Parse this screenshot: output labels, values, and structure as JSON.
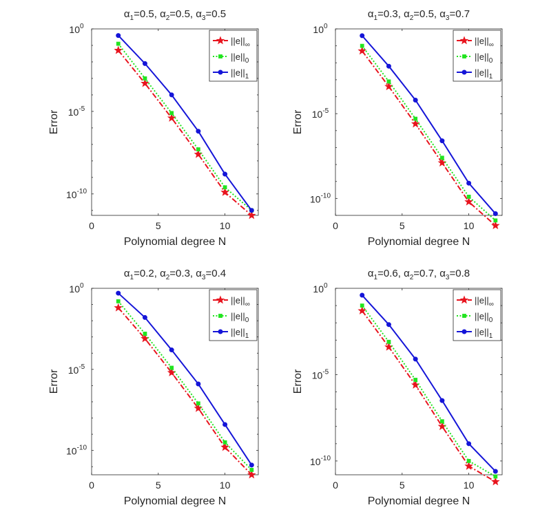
{
  "chart_data": [
    {
      "type": "line",
      "title": "α1=0.5, α2=0.5, α3=0.5",
      "title_parts": [
        {
          "sym": "α",
          "sub": "1",
          "val": "=0.5, "
        },
        {
          "sym": "α",
          "sub": "2",
          "val": "=0.5, "
        },
        {
          "sym": "α",
          "sub": "3",
          "val": "=0.5"
        }
      ],
      "xlabel": "Polynomial degree N",
      "ylabel": "Error",
      "xlim": [
        0,
        12.5
      ],
      "ylim_exp": [
        -11.3,
        0
      ],
      "y_scale": "log",
      "x": [
        2,
        4,
        6,
        8,
        10,
        12
      ],
      "series": [
        {
          "name": "||e||∞",
          "legend_base": "||e||",
          "legend_sub": "∞",
          "color": "#e8141e",
          "marker": "star",
          "style": "dash-dot",
          "log10_values": [
            -1.3,
            -3.3,
            -5.4,
            -7.6,
            -9.9,
            -11.3
          ]
        },
        {
          "name": "||e||0",
          "legend_base": "||e||",
          "legend_sub": "0",
          "color": "#21e41f",
          "marker": "square",
          "style": "dotted",
          "log10_values": [
            -0.9,
            -3.0,
            -5.1,
            -7.3,
            -9.6,
            -11.0
          ]
        },
        {
          "name": "||e||1",
          "legend_base": "||e||",
          "legend_sub": "1",
          "color": "#1515d8",
          "marker": "circle",
          "style": "solid",
          "log10_values": [
            -0.4,
            -2.1,
            -4.0,
            -6.2,
            -8.8,
            -11.0
          ]
        }
      ],
      "xticks": [
        "0",
        "5",
        "10"
      ],
      "xtick_values": [
        0,
        5,
        10
      ],
      "yticks": [
        {
          "base": "10",
          "exp": "0",
          "value": 0
        },
        {
          "base": "10",
          "exp": "-5",
          "value": -5
        },
        {
          "base": "10",
          "exp": "-10",
          "value": -10
        }
      ],
      "legend_position": "top-right",
      "grid": false
    },
    {
      "type": "line",
      "title": "α1=0.3, α2=0.5, α3=0.7",
      "title_parts": [
        {
          "sym": "α",
          "sub": "1",
          "val": "=0.3, "
        },
        {
          "sym": "α",
          "sub": "2",
          "val": "=0.5, "
        },
        {
          "sym": "α",
          "sub": "3",
          "val": "=0.7"
        }
      ],
      "xlabel": "Polynomial degree N",
      "ylabel": "Error",
      "xlim": [
        0,
        12.5
      ],
      "ylim_exp": [
        -11.0,
        0
      ],
      "y_scale": "log",
      "x": [
        2,
        4,
        6,
        8,
        10,
        12
      ],
      "series": [
        {
          "name": "||e||∞",
          "legend_base": "||e||",
          "legend_sub": "∞",
          "color": "#e8141e",
          "marker": "star",
          "style": "dash-dot",
          "log10_values": [
            -1.3,
            -3.4,
            -5.6,
            -7.9,
            -10.2,
            -11.6
          ]
        },
        {
          "name": "||e||0",
          "legend_base": "||e||",
          "legend_sub": "0",
          "color": "#21e41f",
          "marker": "square",
          "style": "dotted",
          "log10_values": [
            -1.0,
            -3.1,
            -5.3,
            -7.6,
            -9.9,
            -11.3
          ]
        },
        {
          "name": "||e||1",
          "legend_base": "||e||",
          "legend_sub": "1",
          "color": "#1515d8",
          "marker": "circle",
          "style": "solid",
          "log10_values": [
            -0.4,
            -2.2,
            -4.2,
            -6.6,
            -9.1,
            -10.9
          ]
        }
      ],
      "xticks": [
        "0",
        "5",
        "10"
      ],
      "xtick_values": [
        0,
        5,
        10
      ],
      "yticks": [
        {
          "base": "10",
          "exp": "0",
          "value": 0
        },
        {
          "base": "10",
          "exp": "-5",
          "value": -5
        },
        {
          "base": "10",
          "exp": "-10",
          "value": -10
        }
      ],
      "legend_position": "top-right",
      "grid": false
    },
    {
      "type": "line",
      "title": "α1=0.2, α2=0.3, α3=0.4",
      "title_parts": [
        {
          "sym": "α",
          "sub": "1",
          "val": "=0.2, "
        },
        {
          "sym": "α",
          "sub": "2",
          "val": "=0.3, "
        },
        {
          "sym": "α",
          "sub": "3",
          "val": "=0.4"
        }
      ],
      "xlabel": "Polynomial degree N",
      "ylabel": "Error",
      "xlim": [
        0,
        12.5
      ],
      "ylim_exp": [
        -11.5,
        0
      ],
      "y_scale": "log",
      "x": [
        2,
        4,
        6,
        8,
        10,
        12
      ],
      "series": [
        {
          "name": "||e||∞",
          "legend_base": "||e||",
          "legend_sub": "∞",
          "color": "#e8141e",
          "marker": "star",
          "style": "dash-dot",
          "log10_values": [
            -1.2,
            -3.1,
            -5.2,
            -7.4,
            -9.8,
            -11.5
          ]
        },
        {
          "name": "||e||0",
          "legend_base": "||e||",
          "legend_sub": "0",
          "color": "#21e41f",
          "marker": "square",
          "style": "dotted",
          "log10_values": [
            -0.8,
            -2.8,
            -4.9,
            -7.1,
            -9.5,
            -11.2
          ]
        },
        {
          "name": "||e||1",
          "legend_base": "||e||",
          "legend_sub": "1",
          "color": "#1515d8",
          "marker": "circle",
          "style": "solid",
          "log10_values": [
            -0.3,
            -1.8,
            -3.8,
            -5.9,
            -8.4,
            -10.9
          ]
        }
      ],
      "xticks": [
        "0",
        "5",
        "10"
      ],
      "xtick_values": [
        0,
        5,
        10
      ],
      "yticks": [
        {
          "base": "10",
          "exp": "0",
          "value": 0
        },
        {
          "base": "10",
          "exp": "-5",
          "value": -5
        },
        {
          "base": "10",
          "exp": "-10",
          "value": -10
        }
      ],
      "legend_position": "top-right",
      "grid": false
    },
    {
      "type": "line",
      "title": "α1=0.6, α2=0.7, α3=0.8",
      "title_parts": [
        {
          "sym": "α",
          "sub": "1",
          "val": "=0.6, "
        },
        {
          "sym": "α",
          "sub": "2",
          "val": "=0.7, "
        },
        {
          "sym": "α",
          "sub": "3",
          "val": "=0.8"
        }
      ],
      "xlabel": "Polynomial degree N",
      "ylabel": "Error",
      "xlim": [
        0,
        12.5
      ],
      "ylim_exp": [
        -10.8,
        0
      ],
      "y_scale": "log",
      "x": [
        2,
        4,
        6,
        8,
        10,
        12
      ],
      "series": [
        {
          "name": "||e||∞",
          "legend_base": "||e||",
          "legend_sub": "∞",
          "color": "#e8141e",
          "marker": "star",
          "style": "dash-dot",
          "log10_values": [
            -1.3,
            -3.4,
            -5.6,
            -8.0,
            -10.3,
            -11.2
          ]
        },
        {
          "name": "||e||0",
          "legend_base": "||e||",
          "legend_sub": "0",
          "color": "#21e41f",
          "marker": "square",
          "style": "dotted",
          "log10_values": [
            -1.0,
            -3.1,
            -5.3,
            -7.7,
            -10.0,
            -10.9
          ]
        },
        {
          "name": "||e||1",
          "legend_base": "||e||",
          "legend_sub": "1",
          "color": "#1515d8",
          "marker": "circle",
          "style": "solid",
          "log10_values": [
            -0.4,
            -2.1,
            -4.1,
            -6.5,
            -9.0,
            -10.6
          ]
        }
      ],
      "xticks": [
        "0",
        "5",
        "10"
      ],
      "xtick_values": [
        0,
        5,
        10
      ],
      "yticks": [
        {
          "base": "10",
          "exp": "0",
          "value": 0
        },
        {
          "base": "10",
          "exp": "-5",
          "value": -5
        },
        {
          "base": "10",
          "exp": "-10",
          "value": -10
        }
      ],
      "legend_position": "top-right",
      "grid": false
    }
  ]
}
